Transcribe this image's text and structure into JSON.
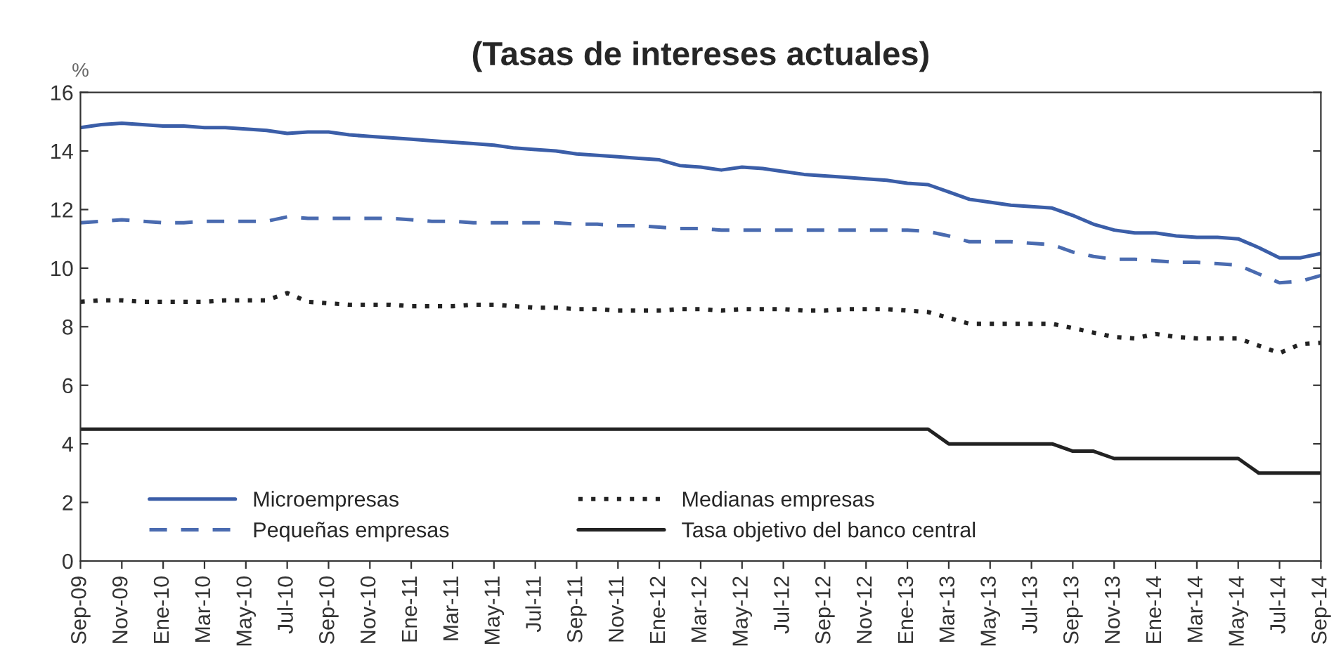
{
  "chart_data": {
    "type": "line",
    "title": "(Tasas de intereses actuales)",
    "ylabel": "%",
    "categories": [
      "Sep-09",
      null,
      "Nov-09",
      null,
      "Ene-10",
      null,
      "Mar-10",
      null,
      "May-10",
      null,
      "Jul-10",
      null,
      "Sep-10",
      null,
      "Nov-10",
      null,
      "Ene-11",
      null,
      "Mar-11",
      null,
      "May-11",
      null,
      "Jul-11",
      null,
      "Sep-11",
      null,
      "Nov-11",
      null,
      "Ene-12",
      null,
      "Mar-12",
      null,
      "May-12",
      null,
      "Jul-12",
      null,
      "Sep-12",
      null,
      "Nov-12",
      null,
      "Ene-13",
      null,
      "Mar-13",
      null,
      "May-13",
      null,
      "Jul-13",
      null,
      "Sep-13",
      null,
      "Nov-13",
      null,
      "Ene-14",
      null,
      "Mar-14",
      null,
      "May-14",
      null,
      "Jul-14",
      null,
      "Sep-14"
    ],
    "series": [
      {
        "name": "Microempresas",
        "color": "#3b5ea8",
        "line_style": "solid",
        "values": [
          14.8,
          14.9,
          14.95,
          14.9,
          14.85,
          14.85,
          14.8,
          14.8,
          14.75,
          14.7,
          14.6,
          14.65,
          14.65,
          14.55,
          14.5,
          14.45,
          14.4,
          14.35,
          14.3,
          14.25,
          14.2,
          14.1,
          14.05,
          14.0,
          13.9,
          13.85,
          13.8,
          13.75,
          13.7,
          13.5,
          13.45,
          13.35,
          13.45,
          13.4,
          13.3,
          13.2,
          13.15,
          13.1,
          13.05,
          13.0,
          12.9,
          12.85,
          12.6,
          12.35,
          12.25,
          12.15,
          12.1,
          12.05,
          11.8,
          11.5,
          11.3,
          11.2,
          11.2,
          11.1,
          11.05,
          11.05,
          11.0,
          10.7,
          10.35,
          10.35,
          10.5
        ]
      },
      {
        "name": "Pequeñas empresas",
        "color": "#4a6bb0",
        "line_style": "dashed",
        "values": [
          11.55,
          11.6,
          11.65,
          11.6,
          11.55,
          11.55,
          11.6,
          11.6,
          11.6,
          11.6,
          11.75,
          11.7,
          11.7,
          11.7,
          11.7,
          11.7,
          11.65,
          11.6,
          11.6,
          11.55,
          11.55,
          11.55,
          11.55,
          11.55,
          11.5,
          11.5,
          11.45,
          11.45,
          11.4,
          11.35,
          11.35,
          11.3,
          11.3,
          11.3,
          11.3,
          11.3,
          11.3,
          11.3,
          11.3,
          11.3,
          11.3,
          11.25,
          11.1,
          10.9,
          10.9,
          10.9,
          10.85,
          10.8,
          10.55,
          10.4,
          10.3,
          10.3,
          10.25,
          10.2,
          10.2,
          10.15,
          10.1,
          9.8,
          9.5,
          9.55,
          9.75
        ]
      },
      {
        "name": "Medianas empresas",
        "color": "#222222",
        "line_style": "dotted",
        "values": [
          8.85,
          8.9,
          8.9,
          8.85,
          8.85,
          8.85,
          8.85,
          8.9,
          8.9,
          8.9,
          9.15,
          8.85,
          8.8,
          8.75,
          8.75,
          8.75,
          8.7,
          8.7,
          8.7,
          8.75,
          8.75,
          8.7,
          8.65,
          8.65,
          8.6,
          8.6,
          8.55,
          8.55,
          8.55,
          8.6,
          8.6,
          8.55,
          8.6,
          8.6,
          8.6,
          8.55,
          8.55,
          8.6,
          8.6,
          8.6,
          8.55,
          8.5,
          8.3,
          8.1,
          8.1,
          8.1,
          8.1,
          8.1,
          7.95,
          7.8,
          7.65,
          7.6,
          7.75,
          7.65,
          7.6,
          7.6,
          7.6,
          7.35,
          7.1,
          7.4,
          7.45
        ]
      },
      {
        "name": "Tasa objetivo del banco central",
        "color": "#222222",
        "line_style": "solid",
        "values": [
          4.5,
          4.5,
          4.5,
          4.5,
          4.5,
          4.5,
          4.5,
          4.5,
          4.5,
          4.5,
          4.5,
          4.5,
          4.5,
          4.5,
          4.5,
          4.5,
          4.5,
          4.5,
          4.5,
          4.5,
          4.5,
          4.5,
          4.5,
          4.5,
          4.5,
          4.5,
          4.5,
          4.5,
          4.5,
          4.5,
          4.5,
          4.5,
          4.5,
          4.5,
          4.5,
          4.5,
          4.5,
          4.5,
          4.5,
          4.5,
          4.5,
          4.5,
          4.0,
          4.0,
          4.0,
          4.0,
          4.0,
          4.0,
          3.75,
          3.75,
          3.5,
          3.5,
          3.5,
          3.5,
          3.5,
          3.5,
          3.5,
          3.0,
          3.0,
          3.0,
          3.0
        ]
      }
    ],
    "ylim": [
      0,
      16
    ],
    "yticks": [
      0,
      2,
      4,
      6,
      8,
      10,
      12,
      14,
      16
    ],
    "grid": false,
    "legend": "bottom left",
    "marker": "none"
  }
}
